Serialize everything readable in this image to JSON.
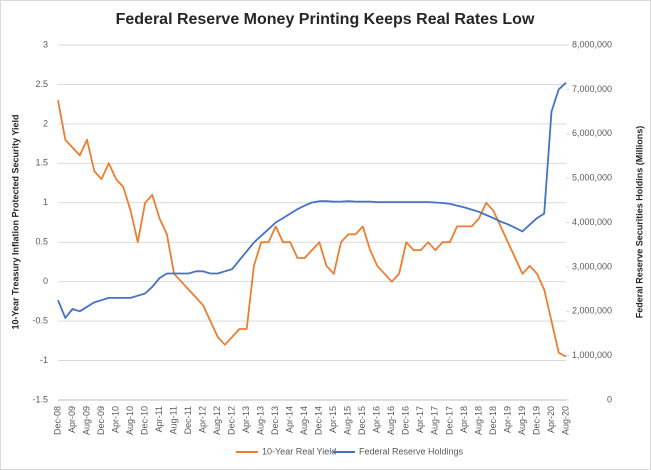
{
  "chart_data": {
    "type": "line",
    "title": "Federal Reserve Money Printing Keeps Real Rates Low",
    "ylabel": "10-Year Treasury Inflation Protected Security Yield",
    "y2label": "Federal Reserve Securities Holdins (Millions)",
    "categories": [
      "Dec-08",
      null,
      "Apr-09",
      null,
      "Aug-09",
      null,
      "Dec-09",
      null,
      "Apr-10",
      null,
      "Aug-10",
      null,
      "Dec-10",
      null,
      "Apr-11",
      null,
      "Aug-11",
      null,
      "Dec-11",
      null,
      "Apr-12",
      null,
      "Aug-12",
      null,
      "Dec-12",
      null,
      "Apr-13",
      null,
      "Aug-13",
      null,
      "Dec-13",
      null,
      "Apr-14",
      null,
      "Aug-14",
      null,
      "Dec-14",
      null,
      "Apr-15",
      null,
      "Aug-15",
      null,
      "Dec-15",
      null,
      "Apr-16",
      null,
      "Aug-16",
      null,
      "Dec-16",
      null,
      "Apr-17",
      null,
      "Aug-17",
      null,
      "Dec-17",
      null,
      "Apr-18",
      null,
      "Aug-18",
      null,
      "Dec-18",
      null,
      "Apr-19",
      null,
      "Aug-19",
      null,
      "Dec-19",
      null,
      "Apr-20",
      null,
      "Aug-20"
    ],
    "series": [
      {
        "name": "10-Year Real Yield",
        "color": "#ed7d31",
        "values": [
          2.3,
          1.8,
          1.7,
          1.6,
          1.8,
          1.4,
          1.3,
          1.5,
          1.3,
          1.2,
          0.9,
          0.5,
          1.0,
          1.1,
          0.8,
          0.6,
          0.1,
          0.0,
          -0.1,
          -0.2,
          -0.3,
          -0.5,
          -0.7,
          -0.8,
          -0.7,
          -0.6,
          -0.6,
          0.2,
          0.5,
          0.5,
          0.7,
          0.5,
          0.5,
          0.3,
          0.3,
          0.4,
          0.5,
          0.2,
          0.1,
          0.5,
          0.6,
          0.6,
          0.7,
          0.4,
          0.2,
          0.1,
          0.0,
          0.1,
          0.5,
          0.4,
          0.4,
          0.5,
          0.4,
          0.5,
          0.5,
          0.7,
          0.7,
          0.7,
          0.8,
          1.0,
          0.9,
          0.7,
          0.5,
          0.3,
          0.1,
          0.2,
          0.1,
          -0.1,
          -0.5,
          -0.9,
          -0.95
        ]
      },
      {
        "name": "Federal Reserve Holdings",
        "color": "#4472c4",
        "axis": "y2",
        "values": [
          2250000,
          1850000,
          2050000,
          2000000,
          2100000,
          2200000,
          2250000,
          2300000,
          2300000,
          2300000,
          2300000,
          2350000,
          2400000,
          2550000,
          2750000,
          2850000,
          2850000,
          2850000,
          2850000,
          2900000,
          2900000,
          2850000,
          2850000,
          2900000,
          2950000,
          3150000,
          3350000,
          3550000,
          3700000,
          3850000,
          4000000,
          4100000,
          4200000,
          4300000,
          4380000,
          4450000,
          4480000,
          4480000,
          4470000,
          4470000,
          4480000,
          4470000,
          4470000,
          4470000,
          4460000,
          4460000,
          4460000,
          4460000,
          4460000,
          4460000,
          4460000,
          4460000,
          4450000,
          4440000,
          4420000,
          4380000,
          4340000,
          4290000,
          4240000,
          4170000,
          4100000,
          4020000,
          3960000,
          3880000,
          3800000,
          3950000,
          4100000,
          4200000,
          6500000,
          7000000,
          7150000
        ]
      }
    ],
    "ylim": [
      -1.5,
      3
    ],
    "yticks": [
      -1.5,
      -1,
      -0.5,
      0,
      0.5,
      1,
      1.5,
      2,
      2.5,
      3
    ],
    "y2lim": [
      0,
      8000000
    ],
    "y2ticks": [
      0,
      {
        "value": 1000000,
        "label": "1,000,000"
      },
      {
        "value": 2000000,
        "label": "2,000,000"
      },
      {
        "value": 3000000,
        "label": "3,000,000"
      },
      {
        "value": 4000000,
        "label": "4,000,000"
      },
      {
        "value": 5000000,
        "label": "5,000,000"
      },
      {
        "value": 6000000,
        "label": "6,000,000"
      },
      {
        "value": 7000000,
        "label": "7,000,000"
      },
      {
        "value": 8000000,
        "label": "8,000,000"
      }
    ],
    "grid": true,
    "legend": "bottom"
  }
}
